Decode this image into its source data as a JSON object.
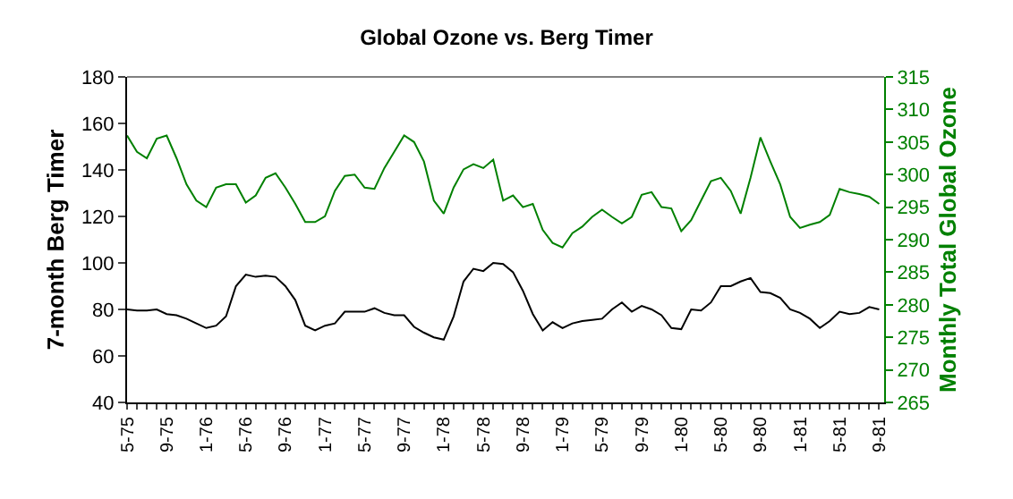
{
  "chart_data": {
    "type": "line",
    "title": "Global Ozone vs. Berg Timer",
    "ylabel": "7-month Berg Timer",
    "y2label": "Monthly Total Global Ozone",
    "categories": [
      "5-75",
      null,
      null,
      null,
      "9-75",
      null,
      null,
      null,
      "1-76",
      null,
      null,
      null,
      "5-76",
      null,
      null,
      null,
      "9-76",
      null,
      null,
      null,
      "1-77",
      null,
      null,
      null,
      "5-77",
      null,
      null,
      null,
      "9-77",
      null,
      null,
      null,
      "1-78",
      null,
      null,
      null,
      "5-78",
      null,
      null,
      null,
      "9-78",
      null,
      null,
      null,
      "1-79",
      null,
      null,
      null,
      "5-79",
      null,
      null,
      null,
      "9-79",
      null,
      null,
      null,
      "1-80",
      null,
      null,
      null,
      "5-80",
      null,
      null,
      null,
      "9-80",
      null,
      null,
      null,
      "1-81",
      null,
      null,
      null,
      "5-81",
      null,
      null,
      null,
      "9-81"
    ],
    "series": [
      {
        "color": "#000000",
        "values": [
          80,
          79.5,
          79.5,
          80,
          78,
          77.5,
          76,
          74,
          72,
          73,
          77,
          90,
          95,
          94,
          94.5,
          94,
          90,
          84,
          73,
          71,
          73,
          74,
          79,
          79,
          79,
          80.5,
          78.5,
          77.5,
          77.5,
          72.5,
          70,
          68,
          67,
          77,
          92,
          97.5,
          96.5,
          100,
          99.5,
          96,
          88,
          78,
          71,
          74.5,
          72,
          74,
          75,
          75.5,
          76,
          80,
          83,
          79,
          81.5,
          80,
          77.5,
          72,
          71.5,
          80,
          79.5,
          83,
          90,
          90,
          92,
          93.5,
          87.5,
          87,
          85,
          80,
          78.5,
          76,
          72,
          75,
          79,
          78,
          78.5,
          81,
          80
        ]
      },
      {
        "color": "#008000",
        "axis": "y2",
        "values": [
          306,
          303.5,
          302.5,
          305.5,
          306,
          302.5,
          298.5,
          296,
          295,
          298,
          298.5,
          298.5,
          295.7,
          296.8,
          299.5,
          300.2,
          298,
          295.5,
          292.7,
          292.7,
          293.6,
          297.5,
          299.8,
          300,
          298,
          297.8,
          301,
          303.5,
          306,
          305,
          302,
          296,
          294,
          298,
          300.8,
          301.6,
          301,
          302.3,
          296,
          296.8,
          295,
          295.5,
          291.5,
          289.5,
          288.8,
          291,
          292,
          293.5,
          294.6,
          293.5,
          292.5,
          293.5,
          296.9,
          297.3,
          295,
          294.8,
          291.3,
          293,
          296,
          299,
          299.5,
          297.5,
          294,
          299.5,
          305.7,
          302,
          298.5,
          293.5,
          291.8,
          292.3,
          292.7,
          293.8,
          297.8,
          297.3,
          297,
          296.6,
          295.5
        ]
      }
    ],
    "ylim": [
      40,
      180
    ],
    "yticks": [
      40,
      60,
      80,
      100,
      120,
      140,
      160,
      180
    ],
    "y2lim": [
      265,
      315
    ],
    "y2ticks": [
      265,
      270,
      275,
      280,
      285,
      290,
      295,
      300,
      305,
      310,
      315
    ],
    "marker": "none",
    "line_style": "solid"
  }
}
